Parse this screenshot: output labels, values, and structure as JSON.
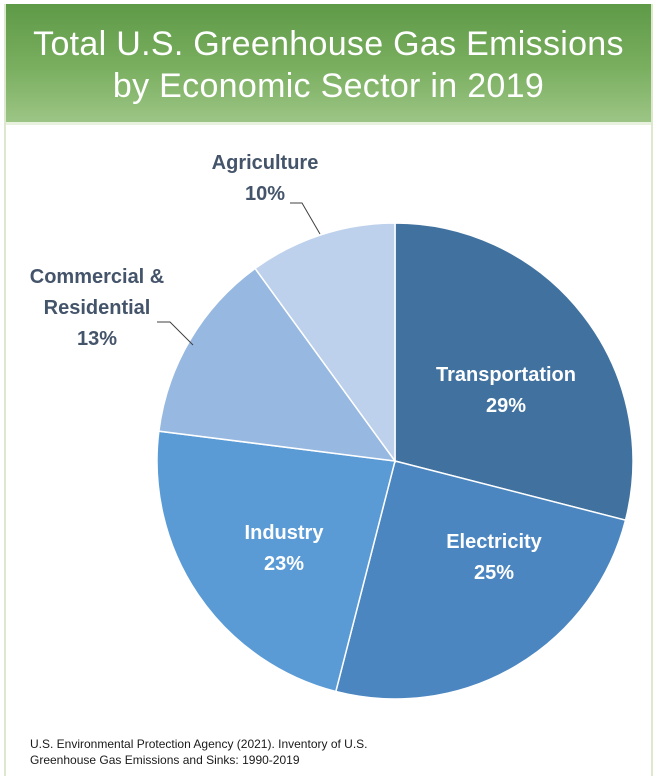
{
  "chart_data": {
    "type": "pie",
    "title_lines": [
      "Total U.S. Greenhouse Gas Emissions",
      "by Economic Sector in 2019"
    ],
    "slices": [
      {
        "name": "Transportation",
        "value": 29,
        "label": "29%",
        "color": "#41729f"
      },
      {
        "name": "Electricity",
        "value": 25,
        "label": "25%",
        "color": "#4b86c1"
      },
      {
        "name": "Industry",
        "value": 23,
        "label": "23%",
        "color": "#5a9bd6"
      },
      {
        "name": "Commercial &\nResidential",
        "value": 13,
        "label": "13%",
        "color": "#97b8e0"
      },
      {
        "name": "Agriculture",
        "value": 10,
        "label": "10%",
        "color": "#bdd0ec"
      }
    ],
    "inside_label_color": "#ffffff",
    "outside_label_color": "#44546a",
    "leader_color": "#404040"
  },
  "source": {
    "line1": "U.S. Environmental Protection Agency (2021). Inventory of U.S.",
    "line2": "Greenhouse Gas Emissions and Sinks: 1990-2019"
  }
}
